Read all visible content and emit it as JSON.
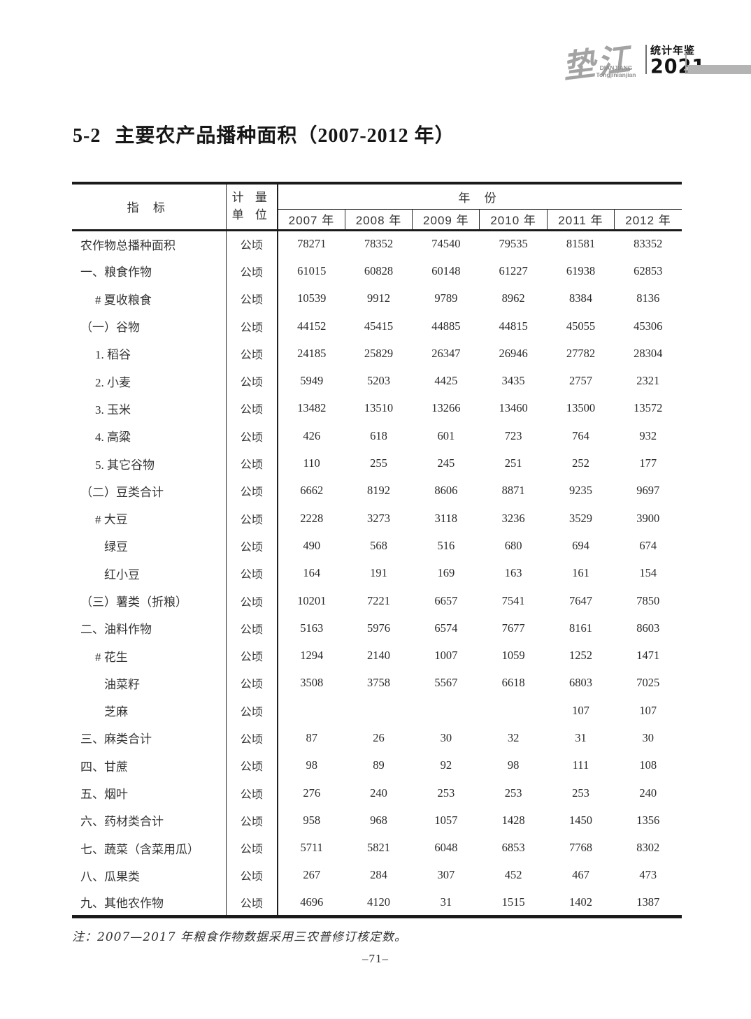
{
  "logo": {
    "calligraphy": "垫江",
    "romanized_line1": "DIANJIANG",
    "romanized_line2": "Tongjinianjian",
    "yearbook_label": "统计年鉴",
    "year": "2021",
    "bar_color": "#b4b4b4"
  },
  "title": {
    "number": "5-2",
    "text": "主要农产品播种面积（2007-2012 年）"
  },
  "table": {
    "header": {
      "indicator": "指 标",
      "unit_line1": "计 量",
      "unit_line2": "单 位",
      "year_group": "年 份",
      "years": [
        "2007 年",
        "2008 年",
        "2009 年",
        "2010 年",
        "2011 年",
        "2012 年"
      ]
    },
    "rows": [
      {
        "label": "农作物总播种面积",
        "indent": 0,
        "unit": "公顷",
        "values": [
          "78271",
          "78352",
          "74540",
          "79535",
          "81581",
          "83352"
        ]
      },
      {
        "label": "一、粮食作物",
        "indent": 0,
        "unit": "公顷",
        "values": [
          "61015",
          "60828",
          "60148",
          "61227",
          "61938",
          "62853"
        ]
      },
      {
        "label": "# 夏收粮食",
        "indent": 1,
        "unit": "公顷",
        "values": [
          "10539",
          "9912",
          "9789",
          "8962",
          "8384",
          "8136"
        ]
      },
      {
        "label": "（一）谷物",
        "indent": 0,
        "unit": "公顷",
        "values": [
          "44152",
          "45415",
          "44885",
          "44815",
          "45055",
          "45306"
        ]
      },
      {
        "label": "1. 稻谷",
        "indent": 1,
        "unit": "公顷",
        "values": [
          "24185",
          "25829",
          "26347",
          "26946",
          "27782",
          "28304"
        ]
      },
      {
        "label": "2. 小麦",
        "indent": 1,
        "unit": "公顷",
        "values": [
          "5949",
          "5203",
          "4425",
          "3435",
          "2757",
          "2321"
        ]
      },
      {
        "label": "3. 玉米",
        "indent": 1,
        "unit": "公顷",
        "values": [
          "13482",
          "13510",
          "13266",
          "13460",
          "13500",
          "13572"
        ]
      },
      {
        "label": "4. 高粱",
        "indent": 1,
        "unit": "公顷",
        "values": [
          "426",
          "618",
          "601",
          "723",
          "764",
          "932"
        ]
      },
      {
        "label": "5. 其它谷物",
        "indent": 1,
        "unit": "公顷",
        "values": [
          "110",
          "255",
          "245",
          "251",
          "252",
          "177"
        ]
      },
      {
        "label": "（二）豆类合计",
        "indent": 0,
        "unit": "公顷",
        "values": [
          "6662",
          "8192",
          "8606",
          "8871",
          "9235",
          "9697"
        ]
      },
      {
        "label": "# 大豆",
        "indent": 1,
        "unit": "公顷",
        "values": [
          "2228",
          "3273",
          "3118",
          "3236",
          "3529",
          "3900"
        ]
      },
      {
        "label": "绿豆",
        "indent": 2,
        "unit": "公顷",
        "values": [
          "490",
          "568",
          "516",
          "680",
          "694",
          "674"
        ]
      },
      {
        "label": "红小豆",
        "indent": 2,
        "unit": "公顷",
        "values": [
          "164",
          "191",
          "169",
          "163",
          "161",
          "154"
        ]
      },
      {
        "label": "（三）薯类（折粮）",
        "indent": 0,
        "unit": "公顷",
        "values": [
          "10201",
          "7221",
          "6657",
          "7541",
          "7647",
          "7850"
        ]
      },
      {
        "label": "二、油料作物",
        "indent": 0,
        "unit": "公顷",
        "values": [
          "5163",
          "5976",
          "6574",
          "7677",
          "8161",
          "8603"
        ]
      },
      {
        "label": "# 花生",
        "indent": 1,
        "unit": "公顷",
        "values": [
          "1294",
          "2140",
          "1007",
          "1059",
          "1252",
          "1471"
        ]
      },
      {
        "label": "油菜籽",
        "indent": 2,
        "unit": "公顷",
        "values": [
          "3508",
          "3758",
          "5567",
          "6618",
          "6803",
          "7025"
        ]
      },
      {
        "label": "芝麻",
        "indent": 2,
        "unit": "公顷",
        "values": [
          "",
          "",
          "",
          "",
          "107",
          "107"
        ]
      },
      {
        "label": "三、麻类合计",
        "indent": 0,
        "unit": "公顷",
        "values": [
          "87",
          "26",
          "30",
          "32",
          "31",
          "30"
        ]
      },
      {
        "label": "四、甘蔗",
        "indent": 0,
        "unit": "公顷",
        "values": [
          "98",
          "89",
          "92",
          "98",
          "111",
          "108"
        ]
      },
      {
        "label": "五、烟叶",
        "indent": 0,
        "unit": "公顷",
        "values": [
          "276",
          "240",
          "253",
          "253",
          "253",
          "240"
        ]
      },
      {
        "label": "六、药材类合计",
        "indent": 0,
        "unit": "公顷",
        "values": [
          "958",
          "968",
          "1057",
          "1428",
          "1450",
          "1356"
        ]
      },
      {
        "label": "七、蔬菜（含菜用瓜）",
        "indent": 0,
        "unit": "公顷",
        "values": [
          "5711",
          "5821",
          "6048",
          "6853",
          "7768",
          "8302"
        ]
      },
      {
        "label": "八、瓜果类",
        "indent": 0,
        "unit": "公顷",
        "values": [
          "267",
          "284",
          "307",
          "452",
          "467",
          "473"
        ]
      },
      {
        "label": "九、其他农作物",
        "indent": 0,
        "unit": "公顷",
        "values": [
          "4696",
          "4120",
          "31",
          "1515",
          "1402",
          "1387"
        ]
      }
    ]
  },
  "footnote": "注：2007—2017 年粮食作物数据采用三农普修订核定数。",
  "page_number": "–71–"
}
